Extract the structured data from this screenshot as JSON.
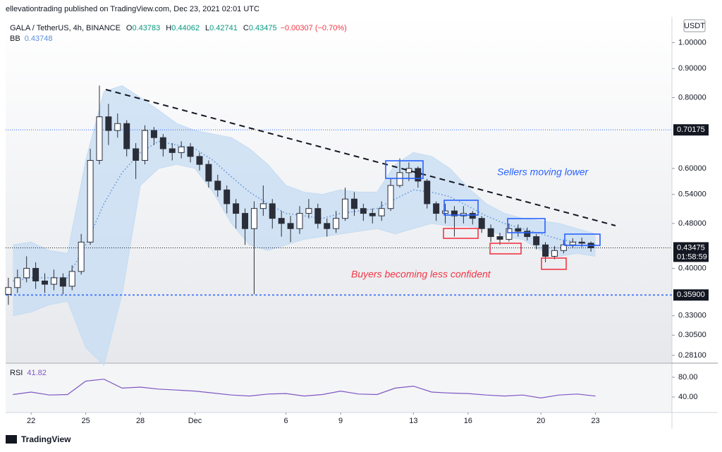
{
  "chart_data": {
    "type": "candlestick",
    "published": "ellevationtrading published on TradingView.com, Dec 23, 2021 02:01 UTC",
    "title": "GALA / TetherUS, 4h, BINANCE",
    "ohlc_header": {
      "o_label": "O",
      "open": 0.43783,
      "h_label": "H",
      "high": 0.44062,
      "l_label": "L",
      "low": 0.42741,
      "c_label": "C",
      "close": 0.43475,
      "change": "−0.00307 (−0.70%)"
    },
    "currency": "USDT",
    "color": "#2a2e39",
    "log_scale": true,
    "xlim": [
      20.6,
      57.2
    ],
    "ylim": [
      0.273,
      1.11
    ],
    "xticks": [
      {
        "value": 22,
        "label": "22"
      },
      {
        "value": 25,
        "label": "25"
      },
      {
        "value": 28,
        "label": "28"
      },
      {
        "value": 31,
        "label": "Dec"
      },
      {
        "value": 36,
        "label": "6"
      },
      {
        "value": 39,
        "label": "9"
      },
      {
        "value": 43,
        "label": "13"
      },
      {
        "value": 46,
        "label": "16"
      },
      {
        "value": 50,
        "label": "20"
      },
      {
        "value": 53,
        "label": "23"
      }
    ],
    "yticks": [
      {
        "value": 1,
        "label": "1.00000"
      },
      {
        "value": 0.9,
        "label": "0.90000"
      },
      {
        "value": 0.8,
        "label": "0.80000"
      },
      {
        "value": 0.6,
        "label": "0.60000"
      },
      {
        "value": 0.54,
        "label": "0.54000"
      },
      {
        "value": 0.48,
        "label": "0.48000"
      },
      {
        "value": 0.4,
        "label": "0.40000"
      },
      {
        "value": 0.33,
        "label": "0.33000"
      },
      {
        "value": 0.305,
        "label": "0.30500"
      },
      {
        "value": 0.281,
        "label": "0.28100"
      }
    ],
    "x": [
      20.75,
      21.25,
      21.75,
      22.25,
      22.75,
      23.25,
      23.75,
      24.25,
      24.75,
      25.25,
      25.75,
      26.25,
      26.75,
      27.25,
      27.75,
      28.25,
      28.75,
      29.25,
      29.75,
      30.25,
      30.75,
      31.25,
      31.75,
      32.25,
      32.75,
      33.25,
      33.75,
      34.25,
      34.75,
      35.25,
      35.75,
      36.25,
      36.75,
      37.25,
      37.75,
      38.25,
      38.75,
      39.25,
      39.75,
      40.25,
      40.75,
      41.25,
      41.75,
      42.25,
      42.75,
      43.25,
      43.75,
      44.25,
      44.75,
      45.25,
      45.75,
      46.25,
      46.75,
      47.25,
      47.75,
      48.25,
      48.75,
      49.25,
      49.75,
      50.25,
      50.75,
      51.25,
      51.75,
      52.25,
      52.75
    ],
    "open": [
      0.36,
      0.37,
      0.385,
      0.4,
      0.38,
      0.375,
      0.385,
      0.372,
      0.395,
      0.445,
      0.62,
      0.74,
      0.7,
      0.72,
      0.65,
      0.62,
      0.7,
      0.68,
      0.65,
      0.64,
      0.655,
      0.63,
      0.61,
      0.57,
      0.55,
      0.52,
      0.5,
      0.47,
      0.51,
      0.52,
      0.49,
      0.48,
      0.47,
      0.5,
      0.51,
      0.48,
      0.47,
      0.49,
      0.53,
      0.51,
      0.5,
      0.495,
      0.51,
      0.56,
      0.59,
      0.6,
      0.57,
      0.52,
      0.5,
      0.505,
      0.495,
      0.5,
      0.49,
      0.47,
      0.455,
      0.45,
      0.47,
      0.465,
      0.455,
      0.44,
      0.42,
      0.43,
      0.44,
      0.445,
      0.443
    ],
    "high": [
      0.385,
      0.398,
      0.42,
      0.41,
      0.392,
      0.398,
      0.392,
      0.405,
      0.46,
      0.65,
      0.84,
      0.78,
      0.75,
      0.73,
      0.665,
      0.715,
      0.71,
      0.69,
      0.665,
      0.67,
      0.665,
      0.64,
      0.62,
      0.585,
      0.56,
      0.53,
      0.51,
      0.525,
      0.56,
      0.53,
      0.505,
      0.495,
      0.515,
      0.53,
      0.52,
      0.49,
      0.505,
      0.555,
      0.545,
      0.52,
      0.51,
      0.525,
      0.575,
      0.625,
      0.615,
      0.605,
      0.575,
      0.525,
      0.52,
      0.515,
      0.515,
      0.505,
      0.495,
      0.478,
      0.462,
      0.48,
      0.478,
      0.472,
      0.46,
      0.445,
      0.438,
      0.448,
      0.452,
      0.453,
      0.446
    ],
    "low": [
      0.345,
      0.362,
      0.378,
      0.368,
      0.362,
      0.366,
      0.36,
      0.366,
      0.39,
      0.44,
      0.61,
      0.66,
      0.68,
      0.63,
      0.575,
      0.61,
      0.66,
      0.63,
      0.62,
      0.625,
      0.615,
      0.595,
      0.555,
      0.535,
      0.5,
      0.47,
      0.44,
      0.36,
      0.495,
      0.47,
      0.455,
      0.445,
      0.46,
      0.49,
      0.47,
      0.455,
      0.462,
      0.485,
      0.495,
      0.485,
      0.48,
      0.485,
      0.505,
      0.555,
      0.57,
      0.555,
      0.51,
      0.485,
      0.48,
      0.455,
      0.48,
      0.478,
      0.462,
      0.445,
      0.44,
      0.446,
      0.455,
      0.448,
      0.432,
      0.41,
      0.415,
      0.425,
      0.434,
      0.436,
      0.428
    ],
    "close": [
      0.37,
      0.385,
      0.4,
      0.38,
      0.375,
      0.385,
      0.372,
      0.395,
      0.445,
      0.62,
      0.74,
      0.7,
      0.72,
      0.65,
      0.62,
      0.7,
      0.68,
      0.65,
      0.64,
      0.655,
      0.63,
      0.61,
      0.57,
      0.55,
      0.52,
      0.5,
      0.47,
      0.51,
      0.52,
      0.49,
      0.48,
      0.47,
      0.5,
      0.51,
      0.48,
      0.47,
      0.49,
      0.53,
      0.51,
      0.5,
      0.495,
      0.51,
      0.56,
      0.59,
      0.6,
      0.57,
      0.52,
      0.5,
      0.505,
      0.495,
      0.5,
      0.49,
      0.47,
      0.455,
      0.45,
      0.47,
      0.465,
      0.455,
      0.44,
      0.42,
      0.43,
      0.44,
      0.445,
      0.443,
      0.43475
    ],
    "bb": {
      "name": "BB",
      "value": 0.43748,
      "color": "#5b8fd9",
      "fill": "#c5dcf3",
      "x": [
        21,
        22,
        23,
        24,
        25,
        26,
        27,
        28,
        29,
        30,
        31,
        32,
        33,
        34,
        35,
        36,
        37,
        38,
        39,
        40,
        41,
        42,
        43,
        44,
        45,
        46,
        47,
        48,
        49,
        50,
        51,
        52,
        53
      ],
      "upper": [
        0.44,
        0.445,
        0.43,
        0.425,
        0.62,
        0.82,
        0.84,
        0.8,
        0.76,
        0.72,
        0.7,
        0.69,
        0.68,
        0.65,
        0.61,
        0.56,
        0.545,
        0.54,
        0.55,
        0.545,
        0.545,
        0.61,
        0.64,
        0.63,
        0.6,
        0.555,
        0.52,
        0.5,
        0.49,
        0.485,
        0.48,
        0.47,
        0.46
      ],
      "basis": [
        0.38,
        0.385,
        0.385,
        0.385,
        0.44,
        0.52,
        0.59,
        0.64,
        0.67,
        0.66,
        0.65,
        0.62,
        0.58,
        0.545,
        0.52,
        0.5,
        0.495,
        0.49,
        0.5,
        0.505,
        0.51,
        0.53,
        0.55,
        0.545,
        0.535,
        0.515,
        0.495,
        0.48,
        0.47,
        0.46,
        0.45,
        0.445,
        0.44
      ],
      "lower": [
        0.33,
        0.335,
        0.345,
        0.35,
        0.29,
        0.27,
        0.36,
        0.56,
        0.6,
        0.61,
        0.6,
        0.545,
        0.48,
        0.44,
        0.43,
        0.44,
        0.45,
        0.455,
        0.46,
        0.465,
        0.47,
        0.46,
        0.47,
        0.48,
        0.475,
        0.475,
        0.47,
        0.455,
        0.45,
        0.43,
        0.42,
        0.425,
        0.42
      ]
    },
    "rsi": {
      "name": "RSI",
      "value": 41.82,
      "color": "#7e57c2",
      "ylim": [
        8.6,
        107
      ],
      "yticks": [
        {
          "value": 80,
          "label": "80.00"
        },
        {
          "value": 40,
          "label": "40.00"
        }
      ],
      "x": [
        21,
        22,
        23,
        24,
        25,
        26,
        27,
        28,
        29,
        30,
        31,
        32,
        33,
        34,
        35,
        36,
        37,
        38,
        39,
        40,
        41,
        42,
        43,
        44,
        45,
        46,
        47,
        48,
        49,
        50,
        51,
        52,
        53
      ],
      "values": [
        45,
        50,
        44,
        45,
        72,
        76,
        58,
        60,
        56,
        54,
        52,
        48,
        44,
        42,
        46,
        47,
        42,
        45,
        52,
        46,
        45,
        58,
        62,
        50,
        48,
        47,
        44,
        42,
        44,
        38,
        44,
        46,
        41.82
      ]
    },
    "levels": [
      0.70175,
      {
        "value": 0.359,
        "label": "0.35900"
      }
    ],
    "last_price": 0.43475,
    "countdown": "01:58:59",
    "annotations": [
      "Sellers moving lower",
      "Buyers becoming less confident"
    ],
    "brand": "TradingView"
  }
}
